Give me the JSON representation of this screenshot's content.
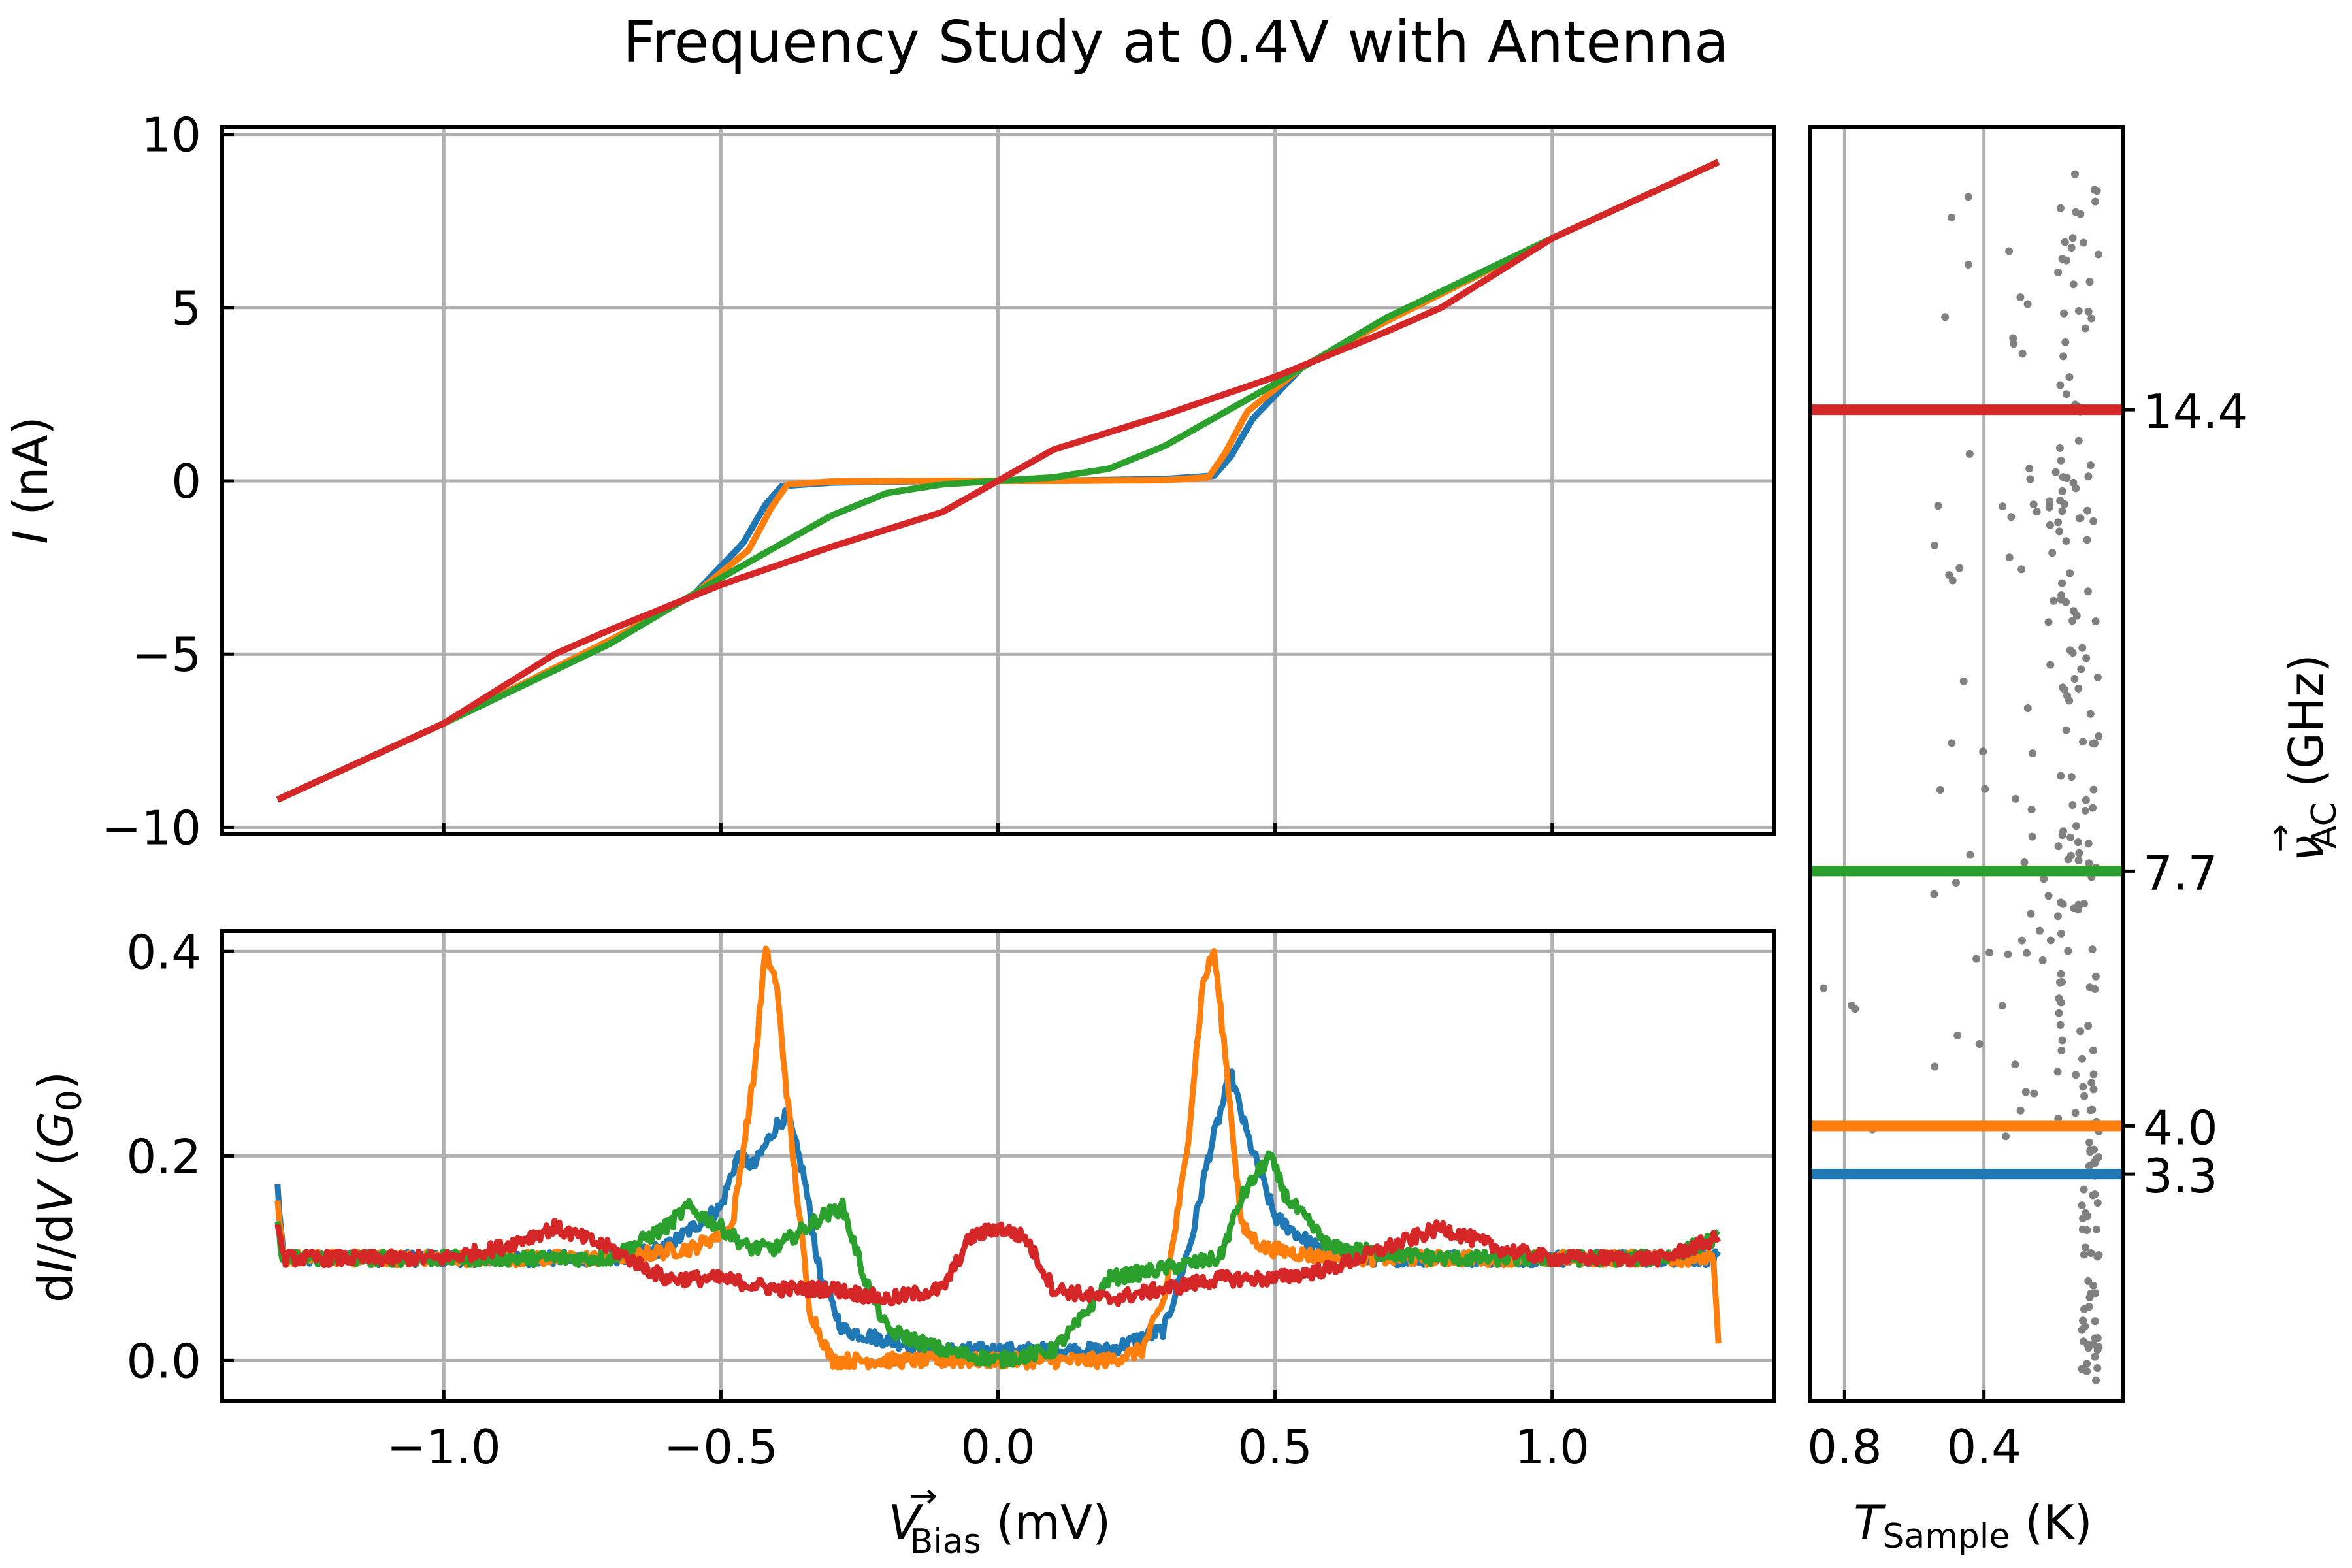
{
  "chart_data": [
    {
      "type": "line",
      "title": "Frequency Study at 0.4V with Antenna",
      "panel": "I-V",
      "xlabel": "",
      "ylabel": "I (nA)",
      "ylabel_parts": {
        "symbol": "I",
        "unit": " (nA)"
      },
      "xlim": [
        -1.4,
        1.4
      ],
      "ylim": [
        -10.2,
        10.2
      ],
      "yticks": [
        10,
        5,
        0,
        -5,
        -10
      ],
      "ytick_labels": [
        "10",
        "5",
        "0",
        "−5",
        "−10"
      ],
      "xticks": [
        -1.0,
        -0.5,
        0.0,
        0.5,
        1.0
      ],
      "grid": true,
      "series": [
        {
          "color": "#1f77b4",
          "x": [
            -1.3,
            -1.0,
            -0.7,
            -0.55,
            -0.46,
            -0.42,
            -0.39,
            -0.3,
            -0.1,
            0.0,
            0.1,
            0.3,
            0.39,
            0.42,
            0.46,
            0.55,
            0.7,
            1.0,
            1.3
          ],
          "y": [
            -9.2,
            -7.0,
            -4.6,
            -3.3,
            -1.8,
            -0.7,
            -0.15,
            -0.05,
            0.0,
            0.0,
            0.0,
            0.05,
            0.15,
            0.7,
            1.8,
            3.3,
            4.6,
            7.0,
            9.2
          ]
        },
        {
          "color": "#ff7f0e",
          "x": [
            -1.3,
            -1.0,
            -0.7,
            -0.55,
            -0.45,
            -0.41,
            -0.38,
            -0.3,
            -0.1,
            0.0,
            0.1,
            0.3,
            0.38,
            0.41,
            0.45,
            0.55,
            0.7,
            1.0,
            1.3
          ],
          "y": [
            -9.2,
            -7.0,
            -4.6,
            -3.3,
            -2.0,
            -0.8,
            -0.1,
            -0.02,
            0.0,
            0.0,
            0.0,
            0.02,
            0.1,
            0.8,
            2.0,
            3.3,
            4.6,
            7.0,
            9.2
          ]
        },
        {
          "color": "#2ca02c",
          "x": [
            -1.3,
            -1.0,
            -0.7,
            -0.5,
            -0.4,
            -0.3,
            -0.2,
            -0.1,
            0.0,
            0.1,
            0.2,
            0.3,
            0.4,
            0.5,
            0.7,
            1.0,
            1.3
          ],
          "y": [
            -9.2,
            -7.0,
            -4.7,
            -2.8,
            -1.9,
            -1.0,
            -0.35,
            -0.1,
            0.0,
            0.1,
            0.35,
            1.0,
            1.9,
            2.8,
            4.7,
            7.0,
            9.2
          ]
        },
        {
          "color": "#d62728",
          "x": [
            -1.3,
            -1.0,
            -0.8,
            -0.7,
            -0.5,
            -0.3,
            -0.1,
            0.0,
            0.1,
            0.3,
            0.5,
            0.7,
            0.8,
            1.0,
            1.3
          ],
          "y": [
            -9.2,
            -7.0,
            -5.0,
            -4.3,
            -3.0,
            -1.9,
            -0.9,
            0.0,
            0.9,
            1.9,
            3.0,
            4.3,
            5.0,
            7.0,
            9.2
          ]
        }
      ]
    },
    {
      "type": "line",
      "panel": "dI/dV",
      "xlabel": "V_Bias (mV)",
      "xlabel_parts": {
        "symbol": "V",
        "arrow": "→",
        "sub": "Bias",
        "unit": " (mV)"
      },
      "ylabel": "dI/dV (G0)",
      "ylabel_parts": {
        "prefix": "d",
        "mid1": "I",
        "mid2": "/d",
        "mid3": "V",
        "open": " (",
        "g": "G",
        "gsub": "0",
        "close": ")"
      },
      "xlim": [
        -1.4,
        1.4
      ],
      "ylim": [
        -0.04,
        0.42
      ],
      "xticks": [
        -1.0,
        -0.5,
        0.0,
        0.5,
        1.0
      ],
      "xtick_labels": [
        "−1.0",
        "−0.5",
        "0.0",
        "0.5",
        "1.0"
      ],
      "yticks": [
        0.4,
        0.2,
        0.0
      ],
      "ytick_labels": [
        "0.4",
        "0.2",
        "0.0"
      ],
      "grid": true,
      "series": [
        {
          "color": "#1f77b4",
          "x": [
            -1.3,
            -1.29,
            -1.2,
            -1.0,
            -0.7,
            -0.6,
            -0.5,
            -0.47,
            -0.44,
            -0.4,
            -0.38,
            -0.35,
            -0.32,
            -0.28,
            -0.2,
            -0.1,
            0.0,
            0.1,
            0.2,
            0.25,
            0.3,
            0.35,
            0.38,
            0.42,
            0.45,
            0.5,
            0.6,
            0.8,
            1.0,
            1.2,
            1.3
          ],
          "y": [
            0.17,
            0.1,
            0.1,
            0.1,
            0.1,
            0.11,
            0.15,
            0.2,
            0.19,
            0.23,
            0.24,
            0.18,
            0.08,
            0.03,
            0.02,
            0.01,
            0.01,
            0.01,
            0.01,
            0.02,
            0.03,
            0.12,
            0.2,
            0.28,
            0.22,
            0.14,
            0.1,
            0.1,
            0.1,
            0.1,
            0.1
          ]
        },
        {
          "color": "#ff7f0e",
          "x": [
            -1.3,
            -1.29,
            -1.2,
            -1.0,
            -0.7,
            -0.55,
            -0.48,
            -0.44,
            -0.42,
            -0.4,
            -0.37,
            -0.34,
            -0.3,
            -0.2,
            -0.1,
            0.0,
            0.1,
            0.2,
            0.26,
            0.3,
            0.34,
            0.37,
            0.39,
            0.41,
            0.44,
            0.48,
            0.6,
            0.8,
            1.0,
            1.2,
            1.29,
            1.3
          ],
          "y": [
            0.15,
            0.1,
            0.1,
            0.1,
            0.1,
            0.11,
            0.13,
            0.28,
            0.4,
            0.37,
            0.2,
            0.05,
            0.0,
            0.0,
            0.0,
            0.0,
            0.0,
            0.0,
            0.01,
            0.06,
            0.2,
            0.37,
            0.4,
            0.3,
            0.13,
            0.11,
            0.1,
            0.1,
            0.1,
            0.1,
            0.1,
            0.02
          ]
        },
        {
          "color": "#2ca02c",
          "x": [
            -1.3,
            -1.29,
            -1.2,
            -1.0,
            -0.7,
            -0.6,
            -0.56,
            -0.5,
            -0.45,
            -0.4,
            -0.32,
            -0.28,
            -0.24,
            -0.2,
            -0.1,
            0.0,
            0.1,
            0.15,
            0.2,
            0.3,
            0.4,
            0.44,
            0.49,
            0.52,
            0.6,
            0.8,
            1.0,
            1.2,
            1.3
          ],
          "y": [
            0.13,
            0.1,
            0.1,
            0.1,
            0.1,
            0.13,
            0.15,
            0.13,
            0.11,
            0.11,
            0.14,
            0.15,
            0.08,
            0.03,
            0.01,
            0.0,
            0.01,
            0.04,
            0.08,
            0.09,
            0.1,
            0.16,
            0.2,
            0.16,
            0.11,
            0.1,
            0.1,
            0.1,
            0.12
          ]
        },
        {
          "color": "#d62728",
          "x": [
            -1.3,
            -1.29,
            -1.2,
            -1.0,
            -0.9,
            -0.8,
            -0.7,
            -0.6,
            -0.5,
            -0.4,
            -0.3,
            -0.2,
            -0.1,
            -0.05,
            0.0,
            0.05,
            0.1,
            0.2,
            0.3,
            0.4,
            0.5,
            0.6,
            0.7,
            0.8,
            0.9,
            1.0,
            1.2,
            1.3
          ],
          "y": [
            0.14,
            0.1,
            0.1,
            0.1,
            0.11,
            0.13,
            0.11,
            0.08,
            0.08,
            0.07,
            0.07,
            0.06,
            0.07,
            0.12,
            0.13,
            0.12,
            0.07,
            0.06,
            0.07,
            0.08,
            0.08,
            0.09,
            0.11,
            0.13,
            0.11,
            0.1,
            0.1,
            0.12
          ]
        }
      ]
    },
    {
      "type": "scatter",
      "panel": "temperature",
      "xlabel": "T_Sample (K)",
      "xlabel_parts": {
        "symbol": "T",
        "sub": "Sample",
        "unit": " (K)"
      },
      "ylabel": "ν_AC (GHz)",
      "ylabel_parts": {
        "symbol": "ν",
        "arrow": "→",
        "sub": "AC",
        "unit": " (GHz)"
      },
      "xlim": [
        0.9,
        0.0
      ],
      "xticks": [
        0.8,
        0.4
      ],
      "xtick_labels": [
        "0.8",
        "0.4"
      ],
      "ylim": [
        0.0,
        18.5
      ],
      "grid": true,
      "point_color": "#808080",
      "points_seed": 7,
      "frequency_markers": [
        {
          "value": 3.3,
          "label": "3.3",
          "color": "#1f77b4"
        },
        {
          "value": 4.0,
          "label": "4.0",
          "color": "#ff7f0e"
        },
        {
          "value": 7.7,
          "label": "7.7",
          "color": "#2ca02c"
        },
        {
          "value": 14.4,
          "label": "14.4",
          "color": "#d62728"
        }
      ]
    }
  ]
}
